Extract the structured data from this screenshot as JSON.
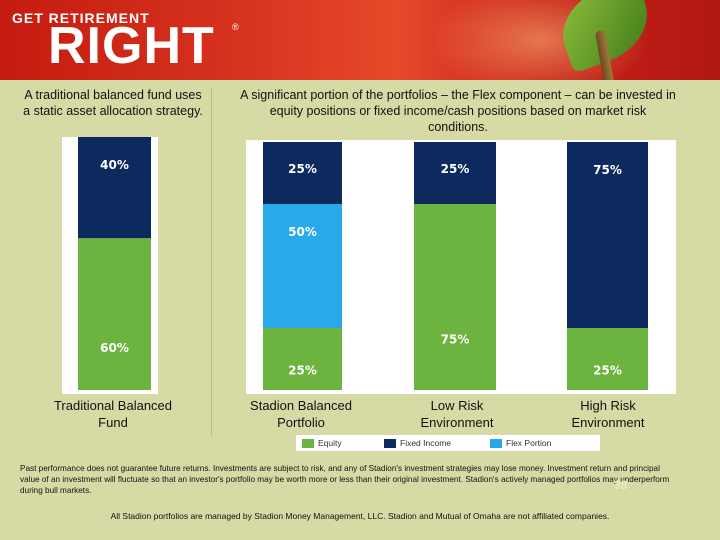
{
  "branding": {
    "top": "GET RETIREMENT",
    "main": "RIGHT",
    "reg": "®"
  },
  "left_caption": "A traditional balanced fund uses a static asset allocation strategy.",
  "right_caption": "A significant portion of the portfolios – the Flex component – can be invested in equity positions or fixed income/cash positions based on market risk conditions.",
  "colors": {
    "equity": "#6db33f",
    "fixed_income": "#0d2a5e",
    "flex": "#29a9e8"
  },
  "chart_data": {
    "type": "bar",
    "stacked": true,
    "categories": [
      "Traditional Balanced Fund",
      "Stadion Balanced Portfolio",
      "Low Risk Environment",
      "High Risk Environment"
    ],
    "series": [
      {
        "name": "Equity",
        "values": [
          60,
          25,
          75,
          25
        ]
      },
      {
        "name": "Flex Portion",
        "values": [
          0,
          50,
          0,
          0
        ]
      },
      {
        "name": "Fixed Income",
        "values": [
          40,
          25,
          25,
          75
        ]
      }
    ],
    "data_labels": [
      [
        "60%",
        "",
        "40%"
      ],
      [
        "25%",
        "50%",
        "25%"
      ],
      [
        "75%",
        "",
        "25%"
      ],
      [
        "25%",
        "",
        "75%"
      ]
    ],
    "ylim": [
      0,
      100
    ],
    "legend": [
      "Equity",
      "Fixed Income",
      "Flex Portion"
    ],
    "legend_position": "bottom"
  },
  "category_labels": [
    [
      "Traditional Balanced",
      "Fund"
    ],
    [
      "Stadion Balanced",
      "Portfolio"
    ],
    [
      "Low Risk",
      "Environment"
    ],
    [
      "High Risk",
      "Environment"
    ]
  ],
  "legend": {
    "equity": "Equity",
    "fixed_income": "Fixed Income",
    "flex": "Flex Portion"
  },
  "disclaimer": "Past performance does not guarantee future returns. Investments are subject to risk, and any of Stadion's investment strategies may lose money. Investment return and principal value of an investment will fluctuate so that an investor's portfolio may be worth more or less than their original investment. Stadion's actively managed portfolios may underperform during bull markets.",
  "page_number": "38",
  "footnote": "All Stadion portfolios are managed by Stadion Money Management, LLC.  Stadion and Mutual of Omaha are not affiliated companies."
}
